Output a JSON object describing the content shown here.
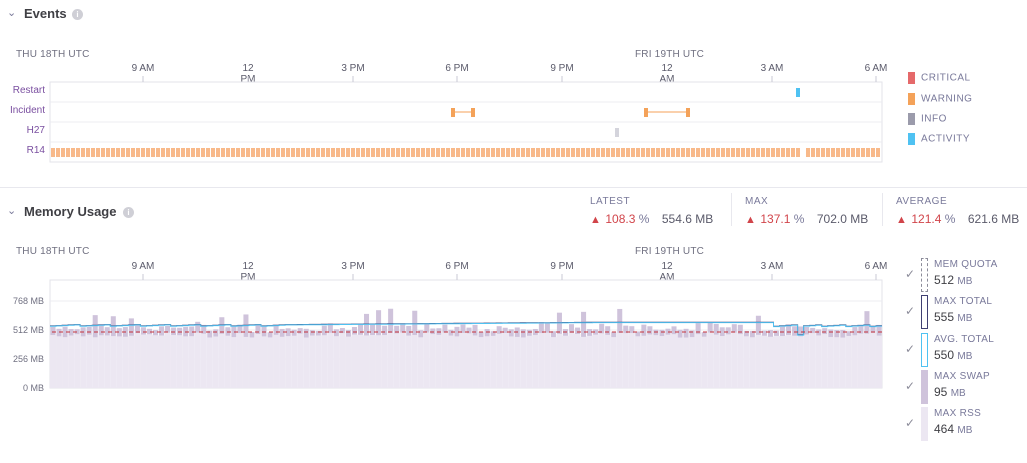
{
  "events": {
    "title": "Events",
    "date_left": "THU 18TH UTC",
    "date_right": "FRI 19TH UTC",
    "hours": [
      "9 AM",
      "12 PM",
      "3 PM",
      "6 PM",
      "9 PM",
      "12 AM",
      "3 AM",
      "6 AM"
    ],
    "rows": [
      "Restart",
      "Incident",
      "H27",
      "R14"
    ],
    "legend": [
      {
        "label": "CRITICAL",
        "color": "#e5696a"
      },
      {
        "label": "WARNING",
        "color": "#f4a259"
      },
      {
        "label": "INFO",
        "color": "#9b9bab"
      },
      {
        "label": "ACTIVITY",
        "color": "#4fc2f2"
      }
    ]
  },
  "memory": {
    "title": "Memory Usage",
    "metrics": [
      {
        "label": "LATEST",
        "pct": "108.3",
        "mb": "554.6"
      },
      {
        "label": "MAX",
        "pct": "137.1",
        "mb": "702.0"
      },
      {
        "label": "AVERAGE",
        "pct": "121.4",
        "mb": "621.6"
      }
    ],
    "units": {
      "pct": "%",
      "mb": "MB"
    },
    "date_left": "THU 18TH UTC",
    "date_right": "FRI 19TH UTC",
    "hours": [
      "9 AM",
      "12 PM",
      "3 PM",
      "6 PM",
      "9 PM",
      "12 AM",
      "3 AM",
      "6 AM"
    ],
    "y_labels": [
      "768 MB",
      "512 MB",
      "256 MB",
      "0 MB"
    ],
    "legend": [
      {
        "name": "MEM QUOTA",
        "value": "512",
        "unit": "MB"
      },
      {
        "name": "MAX TOTAL",
        "value": "555",
        "unit": "MB"
      },
      {
        "name": "AVG. TOTAL",
        "value": "550",
        "unit": "MB"
      },
      {
        "name": "MAX SWAP",
        "value": "95",
        "unit": "MB"
      },
      {
        "name": "MAX RSS",
        "value": "464",
        "unit": "MB"
      }
    ],
    "colors": {
      "quota": "#c4323b",
      "total": "#3f3f72",
      "avg": "#4fc2f2",
      "swap": "#cfc3db",
      "rss": "#ece7f2"
    }
  }
}
